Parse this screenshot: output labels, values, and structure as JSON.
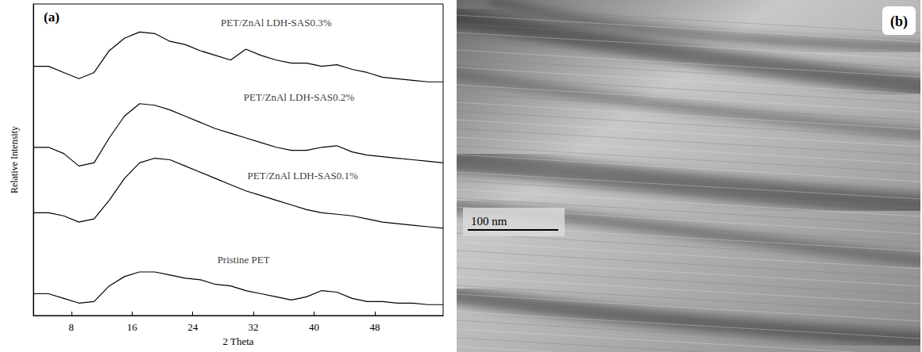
{
  "chart_data": {
    "type": "line",
    "title": "(a)",
    "x_label": "2 Theta",
    "y_label": "Relative Intensity",
    "x": [
      3,
      5,
      7,
      9,
      11,
      13,
      15,
      17,
      19,
      21,
      23,
      25,
      27,
      29,
      31,
      33,
      35,
      37,
      39,
      41,
      43,
      45,
      47,
      49,
      51,
      53,
      55,
      57
    ],
    "series": [
      {
        "color": "#000000",
        "values": [
          80,
          80,
          78,
          76,
          78,
          85,
          89,
          91,
          90.5,
          88,
          87,
          85,
          83.5,
          82,
          85.5,
          83.5,
          82,
          81,
          81,
          80,
          80.5,
          79,
          78,
          76.5,
          76,
          75.5,
          75,
          75
        ]
      },
      {
        "color": "#000000",
        "values": [
          54,
          54,
          52,
          48,
          49,
          57,
          64,
          68,
          67.5,
          66,
          64,
          62,
          60,
          58.5,
          57,
          55.5,
          54,
          53,
          53,
          54,
          54.5,
          52.5,
          51.5,
          51,
          50.5,
          50,
          49.5,
          49
        ]
      },
      {
        "color": "#000000",
        "values": [
          33,
          33,
          32,
          30,
          31,
          37,
          44,
          49,
          50.5,
          50,
          48,
          46,
          44,
          42,
          40,
          38.5,
          37,
          35.5,
          34,
          33,
          32.5,
          32,
          31,
          30,
          29.5,
          29,
          28.5,
          28
        ]
      },
      {
        "color": "#000000",
        "values": [
          7,
          7,
          5.5,
          4,
          4.5,
          9.5,
          12.5,
          14,
          14,
          13,
          12,
          11.5,
          10,
          9.5,
          8,
          7,
          6,
          5,
          6,
          8,
          7.5,
          5.5,
          4.5,
          4.5,
          4,
          4,
          3.5,
          3.5
        ]
      }
    ],
    "annotations": [
      {
        "text": "PET/ZnAl LDH-SAS0.3%",
        "x": 35,
        "y": 94
      },
      {
        "text": "PET/ZnAl LDH-SAS0.2%",
        "x": 38,
        "y": 70
      },
      {
        "text": "PET/ZnAl LDH-SAS0.1%",
        "x": 38.5,
        "y": 45
      },
      {
        "text": "Pristine PET",
        "x": 30.7,
        "y": 18
      }
    ],
    "xlim": [
      3,
      57
    ],
    "xticks": [
      8,
      16,
      24,
      32,
      40,
      48
    ],
    "ylim": [
      0,
      100
    ],
    "tick_labels": "x",
    "grid": false
  },
  "image_panel": {
    "label": "(b)",
    "scale_bar": "100 nm"
  }
}
